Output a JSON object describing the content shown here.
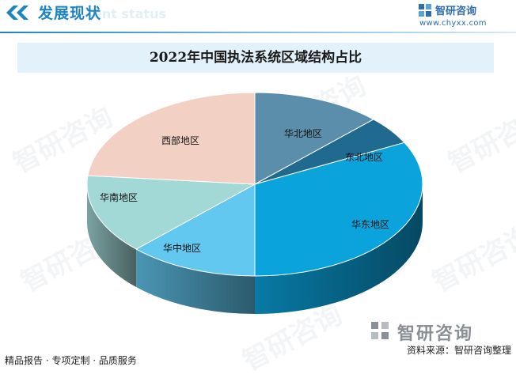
{
  "header": {
    "title": "发展现状",
    "ghost_text": "ent status"
  },
  "logo": {
    "name": "智研咨询",
    "url": "www.chyxx.com"
  },
  "chart_data": {
    "type": "pie",
    "title": "2022年中国执法系统区域结构占比",
    "style": "3d",
    "values_unit": "percent (estimated)",
    "slices": [
      {
        "label": "华北地区",
        "value": 12.5,
        "color": "#5b8eaa"
      },
      {
        "label": "东北地区",
        "value": 5.0,
        "color": "#1f6a8e"
      },
      {
        "label": "华东地区",
        "value": 32.5,
        "color": "#0aa3dc"
      },
      {
        "label": "华中地区",
        "value": 12.5,
        "color": "#62c8f0"
      },
      {
        "label": "华南地区",
        "value": 14.0,
        "color": "#a2d8d6"
      },
      {
        "label": "西部地区",
        "value": 23.5,
        "color": "#f3d0c4"
      }
    ]
  },
  "watermark": {
    "text": "智研咨询"
  },
  "footer": {
    "left_text": "精品报告 · 专项定制 · 品质服务",
    "logo_name": "智研咨询",
    "source": "资料来源：智研咨询整理"
  }
}
